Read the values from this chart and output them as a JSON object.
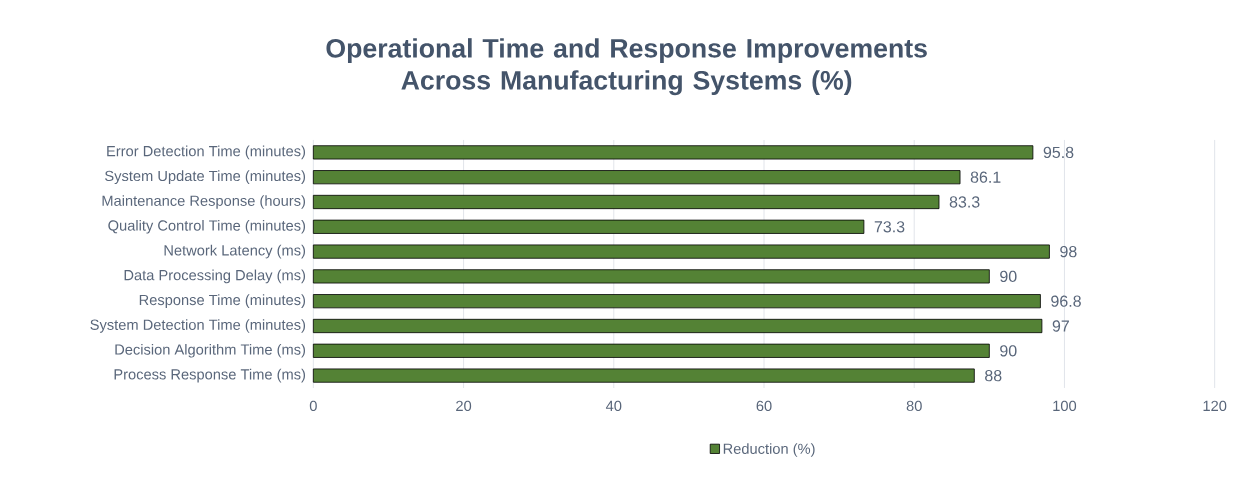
{
  "chart_data": {
    "type": "bar",
    "orientation": "horizontal",
    "title": "Operational Time and Response Improvements Across Manufacturing Systems (%)",
    "categories": [
      "Error Detection Time (minutes)",
      "System Update Time (minutes)",
      "Maintenance Response (hours)",
      "Quality Control Time (minutes)",
      "Network Latency (ms)",
      "Data Processing Delay (ms)",
      "Response Time (minutes)",
      "System Detection Time (minutes)",
      "Decision Algorithm Time (ms)",
      "Process Response Time (ms)"
    ],
    "series": [
      {
        "name": "Reduction (%)",
        "color": "#548235",
        "values": [
          95.8,
          86.1,
          83.3,
          73.3,
          98,
          90,
          96.8,
          97,
          90,
          88
        ],
        "value_labels": [
          "95.8",
          "86.1",
          "83.3",
          "73.3",
          "98",
          "90",
          "96.8",
          "97",
          "90",
          "88"
        ]
      }
    ],
    "xlim": [
      0,
      120
    ],
    "xticks": [
      0,
      20,
      40,
      60,
      80,
      100,
      120
    ],
    "grid": "x",
    "legend": "bottom"
  }
}
